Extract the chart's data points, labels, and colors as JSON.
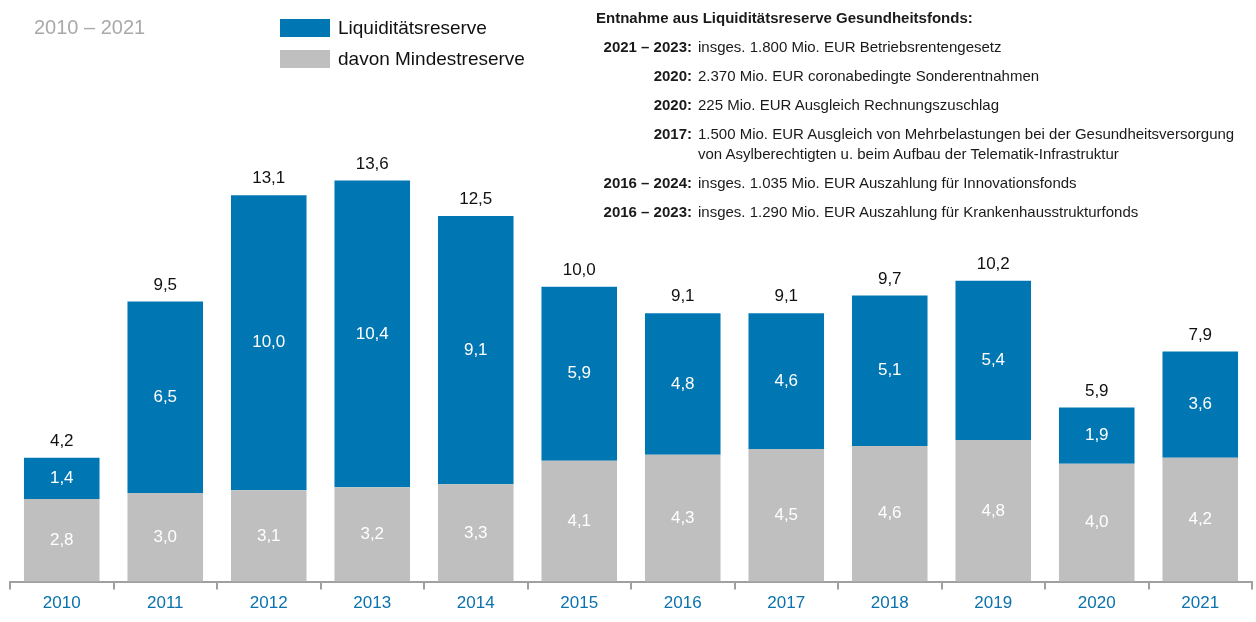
{
  "chart_data": {
    "type": "bar",
    "title": "2010 – 2021",
    "annotations": [
      "Entnahme aus Liquiditätsreserve Gesundheitsfonds:",
      "2021 – 2023: insges. 1.800 Mio. EUR Betriebsrentengesetz",
      "2020: 2.370 Mio. EUR coronabedingte Sonderentnahmen",
      "2020: 225 Mio. EUR Ausgleich Rechnungszuschlag",
      "2017: 1.500 Mio. EUR Ausgleich von Mehrbelastungen bei der Gesundheitsversorgung von Asylberechtigten u. beim Aufbau der Telematik-Infrastruktur",
      "2016 – 2024: insges. 1.035 Mio. EUR Auszahlung für Innovationsfonds",
      "2016 – 2023: insges. 1.290 Mio. EUR Auszahlung für Krankenhausstrukturfonds"
    ],
    "categories": [
      "2010",
      "2011",
      "2012",
      "2013",
      "2014",
      "2015",
      "2016",
      "2017",
      "2018",
      "2019",
      "2020",
      "2021"
    ],
    "stacked": true,
    "series": [
      {
        "name": "davon Mindestreserve",
        "color": "#bebfbe",
        "values": [
          2.8,
          3.0,
          3.1,
          3.2,
          3.3,
          4.1,
          4.3,
          4.5,
          4.6,
          4.8,
          4.0,
          4.2
        ],
        "value_labels": [
          "2,8",
          "3,0",
          "3,1",
          "3,2",
          "3,3",
          "4,1",
          "4,3",
          "4,5",
          "4,6",
          "4,8",
          "4,0",
          "4,2"
        ]
      },
      {
        "name": "Liquiditätsreserve",
        "color": "#0077b3",
        "values": [
          1.4,
          6.5,
          10.0,
          10.4,
          9.1,
          5.9,
          4.8,
          4.6,
          5.1,
          5.4,
          1.9,
          3.6
        ],
        "value_labels": [
          "1,4",
          "6,5",
          "10,0",
          "10,4",
          "9,1",
          "5,9",
          "4,8",
          "4,6",
          "5,1",
          "5,4",
          "1,9",
          "3,6"
        ]
      }
    ],
    "totals": [
      "4,2",
      "9,5",
      "13,1",
      "13,6",
      "12,5",
      "10,0",
      "9,1",
      "9,1",
      "9,7",
      "10,2",
      "5,9",
      "7,9"
    ],
    "legend": "top"
  }
}
